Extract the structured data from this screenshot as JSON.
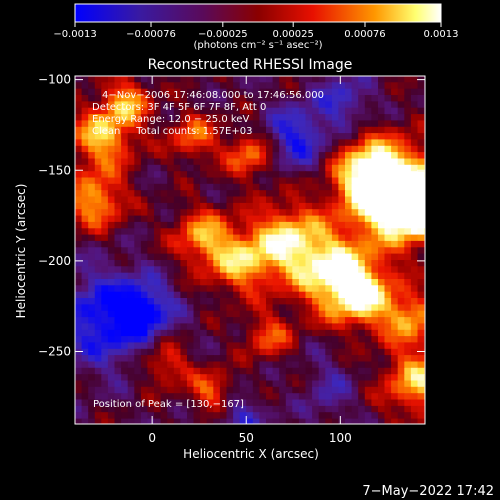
{
  "chart_data": {
    "type": "heatmap",
    "title": "Reconstructed RHESSI Image",
    "xlabel": "Heliocentric X (arcsec)",
    "ylabel": "Heliocentric Y (arcsec)",
    "xlim": [
      -41,
      145
    ],
    "ylim": [
      -290,
      -98
    ],
    "xticks": [
      0,
      50,
      100
    ],
    "xtick_labels": [
      "0",
      "50",
      "100"
    ],
    "yticks": [
      -100,
      -150,
      -200,
      -250
    ],
    "ytick_labels": [
      "−100",
      "−150",
      "−200",
      "−250"
    ],
    "colorbar": {
      "range": [
        -0.0013,
        0.0013
      ],
      "ticks": [
        -0.0013,
        -0.00076,
        -0.00025,
        0.00025,
        0.00076,
        0.0013
      ],
      "tick_labels": [
        "−0.0013",
        "−0.00076",
        "−0.00025",
        "0.00025",
        "0.00076",
        "0.0013"
      ],
      "units": "(photons cm⁻² s⁻¹ asec⁻²)",
      "colors": [
        "#0000ff",
        "#4b0082",
        "#800000",
        "#ff0000",
        "#ff8c00",
        "#ffff66",
        "#ffffff"
      ]
    },
    "annotations": [
      "4−Nov−2006 17:46:08.000 to 17:46:56.000",
      "Detectors: 3F 4F 5F 6F 7F 8F, Att 0",
      "Energy Range: 12.0 − 25.0 keV",
      "Clean     Total counts: 1.57E+03"
    ],
    "peak_label": "Position of Peak = [130,−167]",
    "peak": [
      130,
      -167
    ],
    "hotspots": [
      {
        "x": 128,
        "y": -162,
        "w": 1.0,
        "r": 18
      },
      {
        "x": 140,
        "y": -168,
        "w": 0.8,
        "r": 12
      },
      {
        "x": 114,
        "y": -150,
        "w": 0.7,
        "r": 13
      },
      {
        "x": 70,
        "y": -187,
        "w": 0.75,
        "r": 14
      },
      {
        "x": 95,
        "y": -205,
        "w": 0.8,
        "r": 15
      },
      {
        "x": 110,
        "y": -218,
        "w": 0.7,
        "r": 12
      },
      {
        "x": 45,
        "y": -200,
        "w": 0.6,
        "r": 12
      },
      {
        "x": 25,
        "y": -185,
        "w": 0.6,
        "r": 11
      },
      {
        "x": -28,
        "y": -130,
        "w": 0.7,
        "r": 12
      },
      {
        "x": -32,
        "y": -165,
        "w": 0.65,
        "r": 11
      },
      {
        "x": -15,
        "y": -110,
        "w": 0.55,
        "r": 9
      },
      {
        "x": 20,
        "y": -130,
        "w": 0.5,
        "r": 9
      },
      {
        "x": 50,
        "y": -140,
        "w": 0.55,
        "r": 9
      },
      {
        "x": 140,
        "y": -265,
        "w": 0.7,
        "r": 13
      },
      {
        "x": 135,
        "y": -230,
        "w": 0.6,
        "r": 10
      },
      {
        "x": 5,
        "y": -255,
        "w": 0.45,
        "r": 9
      },
      {
        "x": 80,
        "y": -270,
        "w": 0.4,
        "r": 9
      },
      {
        "x": 60,
        "y": -240,
        "w": 0.45,
        "r": 9
      },
      {
        "x": 30,
        "y": -270,
        "w": 0.5,
        "r": 8
      }
    ],
    "coldspots": [
      {
        "x": -25,
        "y": -230,
        "w": 0.75,
        "r": 18
      },
      {
        "x": 75,
        "y": -130,
        "w": 0.6,
        "r": 12
      },
      {
        "x": 85,
        "y": -270,
        "w": 0.6,
        "r": 11
      },
      {
        "x": -5,
        "y": -225,
        "w": 0.5,
        "r": 10
      },
      {
        "x": 100,
        "y": -110,
        "w": 0.45,
        "r": 10
      },
      {
        "x": 45,
        "y": -285,
        "w": 0.4,
        "r": 9
      }
    ]
  },
  "footer": {
    "timestamp": "7−May−2022 17:42"
  }
}
